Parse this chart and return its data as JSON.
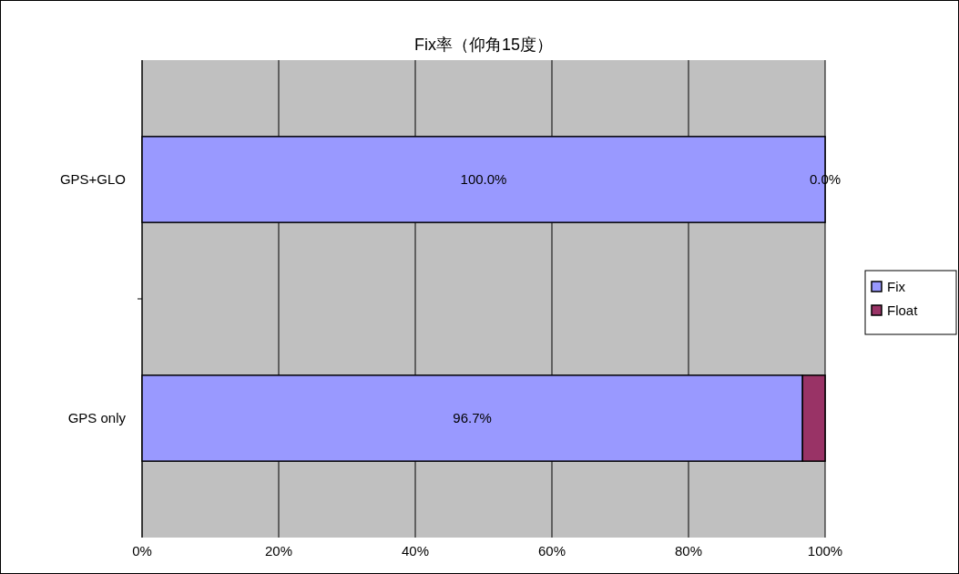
{
  "chart_data": {
    "type": "bar",
    "orientation": "horizontal",
    "stacked": true,
    "title": "Fix率（仰角15度）",
    "categories": [
      "GPS+GLO",
      "GPS only"
    ],
    "series": [
      {
        "name": "Fix",
        "color": "#9999ff",
        "values": [
          100.0,
          96.7
        ],
        "value_labels": [
          "100.0%",
          "96.7%"
        ]
      },
      {
        "name": "Float",
        "color": "#993366",
        "values": [
          0.0,
          3.3
        ],
        "value_labels": [
          "0.0%",
          null
        ]
      }
    ],
    "xlim": [
      0,
      100
    ],
    "xticks": [
      {
        "value": 0,
        "label": "0%"
      },
      {
        "value": 20,
        "label": "20%"
      },
      {
        "value": 40,
        "label": "40%"
      },
      {
        "value": 60,
        "label": "60%"
      },
      {
        "value": 80,
        "label": "80%"
      },
      {
        "value": 100,
        "label": "100%"
      }
    ],
    "grid": "x",
    "legend": "right"
  }
}
